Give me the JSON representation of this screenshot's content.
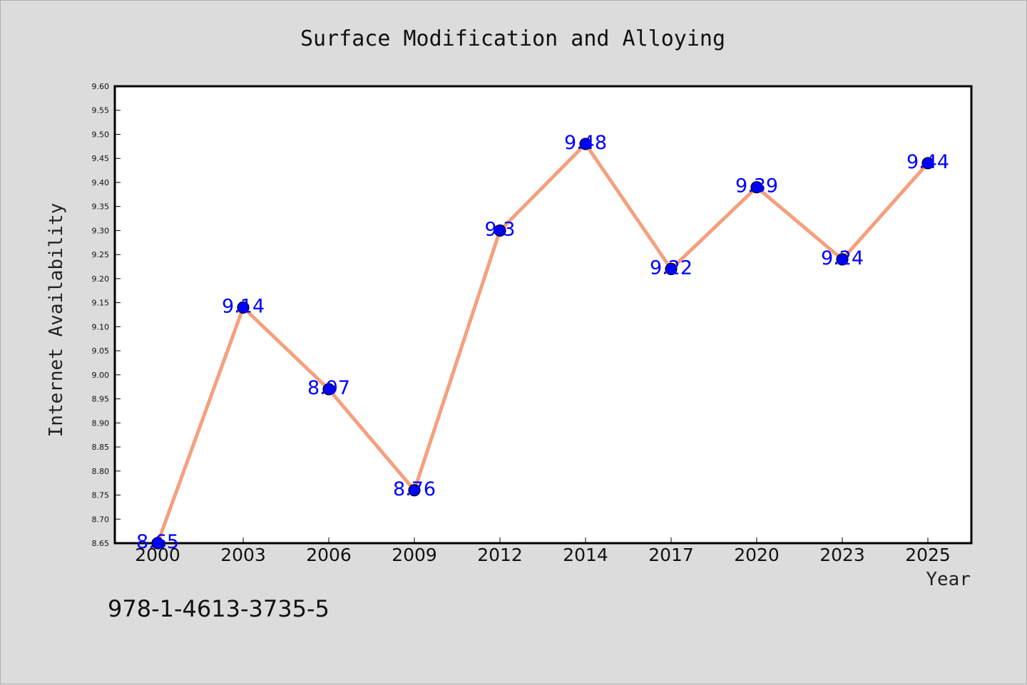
{
  "chart_data": {
    "type": "line",
    "title": "Surface Modification and Alloying",
    "xlabel": "Year",
    "ylabel": "Internet Availability",
    "categories": [
      "2000",
      "2003",
      "2006",
      "2009",
      "2012",
      "2014",
      "2017",
      "2020",
      "2023",
      "2025"
    ],
    "series": [
      {
        "values": [
          8.65,
          9.14,
          8.97,
          8.76,
          9.3,
          9.48,
          9.22,
          9.39,
          9.24,
          9.44
        ],
        "labels": [
          "8.65",
          "9.14",
          "8.97",
          "8.76",
          "9.3",
          "9.48",
          "9.22",
          "9.39",
          "9.24",
          "9.44"
        ],
        "line_color": "#f4a07e",
        "marker_color": "#0000ff"
      }
    ],
    "ylim": [
      8.65,
      9.6
    ],
    "yticks": [
      "8.65",
      "8.70",
      "8.75",
      "8.80",
      "8.85",
      "8.90",
      "8.95",
      "9.00",
      "9.05",
      "9.10",
      "9.15",
      "9.20",
      "9.25",
      "9.30",
      "9.35",
      "9.40",
      "9.45",
      "9.50",
      "9.55",
      "9.60"
    ],
    "grid": false,
    "legend": false
  },
  "footer_text": "978-1-4613-3735-5",
  "colors": {
    "background": "#dcdcdc",
    "plot_background": "#ffffff",
    "data_label": "#0000ff"
  }
}
